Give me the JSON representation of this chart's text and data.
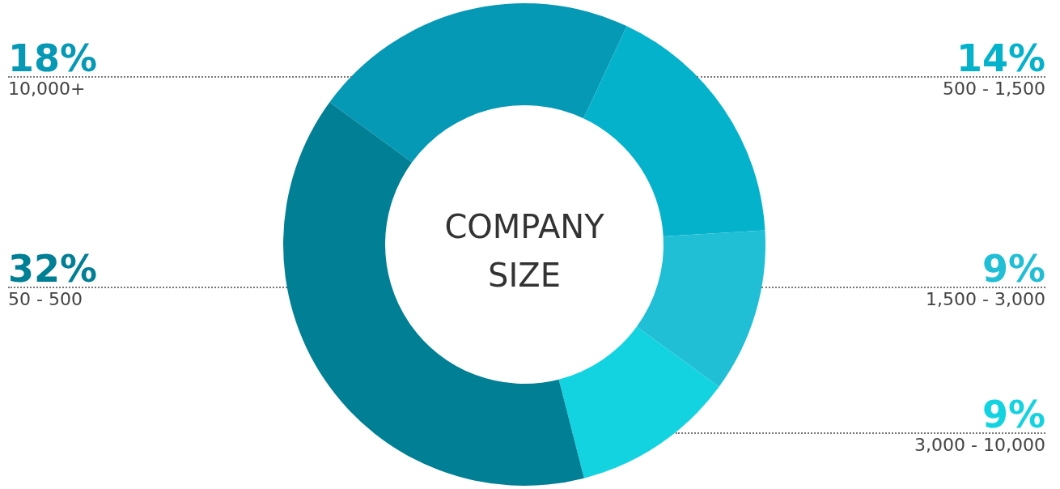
{
  "chart_data": {
    "type": "donut",
    "title": "COMPANY SIZE",
    "categories": [
      "10,000+",
      "500 - 1,500",
      "1,500 - 3,000",
      "3,000 - 10,000",
      "50 - 500"
    ],
    "values": [
      18,
      14,
      9,
      9,
      32
    ],
    "value_labels": [
      "18%",
      "14%",
      "9%",
      "9%",
      "32%"
    ],
    "colors": [
      "#0599b5",
      "#05b2cc",
      "#20bfd6",
      "#13d3e0",
      "#007f95"
    ]
  }
}
